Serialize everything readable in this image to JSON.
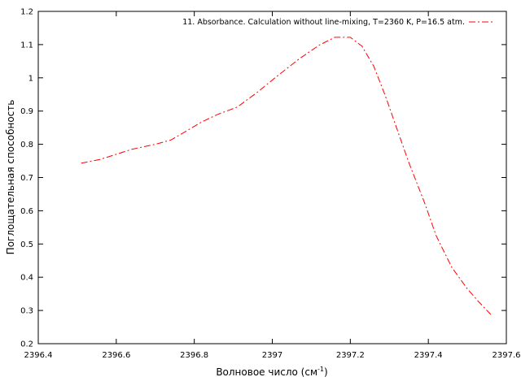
{
  "chart_data": {
    "type": "line",
    "xlabel": "Волновое число (см",
    "xlabel_sup": "-1",
    "xlabel_close": ")",
    "ylabel": "Поглощательная способность",
    "xlim": [
      2396.4,
      2397.6
    ],
    "ylim": [
      0.2,
      1.2
    ],
    "x_ticks": [
      2396.4,
      2396.6,
      2396.8,
      2397,
      2397.2,
      2397.4,
      2397.6
    ],
    "x_tick_labels": [
      "2396.4",
      "2396.6",
      "2396.8",
      "2397",
      "2397.2",
      "2397.4",
      "2397.6"
    ],
    "y_ticks": [
      0.2,
      0.3,
      0.4,
      0.5,
      0.6,
      0.7,
      0.8,
      0.9,
      1.0,
      1.1,
      1.2
    ],
    "y_tick_labels": [
      "0.2",
      "0.3",
      "0.4",
      "0.5",
      "0.6",
      "0.7",
      "0.8",
      "0.9",
      "1",
      "1.1",
      "1.2"
    ],
    "grid": false,
    "legend_position": "top-right",
    "series": [
      {
        "name": "11. Absorbance. Calculation without line-mixing, T=2360 K, P=16.5 atm.",
        "color": "#ff0000",
        "style": "dash-dot",
        "x": [
          2396.51,
          2396.56,
          2396.6,
          2396.64,
          2396.7,
          2396.74,
          2396.78,
          2396.82,
          2396.86,
          2396.91,
          2396.96,
          2397.01,
          2397.07,
          2397.12,
          2397.16,
          2397.2,
          2397.23,
          2397.26,
          2397.29,
          2397.32,
          2397.35,
          2397.39,
          2397.42,
          2397.46,
          2397.5,
          2397.53,
          2397.56
        ],
        "y": [
          0.743,
          0.755,
          0.77,
          0.785,
          0.8,
          0.813,
          0.84,
          0.868,
          0.89,
          0.912,
          0.955,
          1.003,
          1.058,
          1.098,
          1.122,
          1.122,
          1.095,
          1.035,
          0.945,
          0.845,
          0.745,
          0.625,
          0.525,
          0.43,
          0.365,
          0.325,
          0.288
        ]
      }
    ]
  }
}
